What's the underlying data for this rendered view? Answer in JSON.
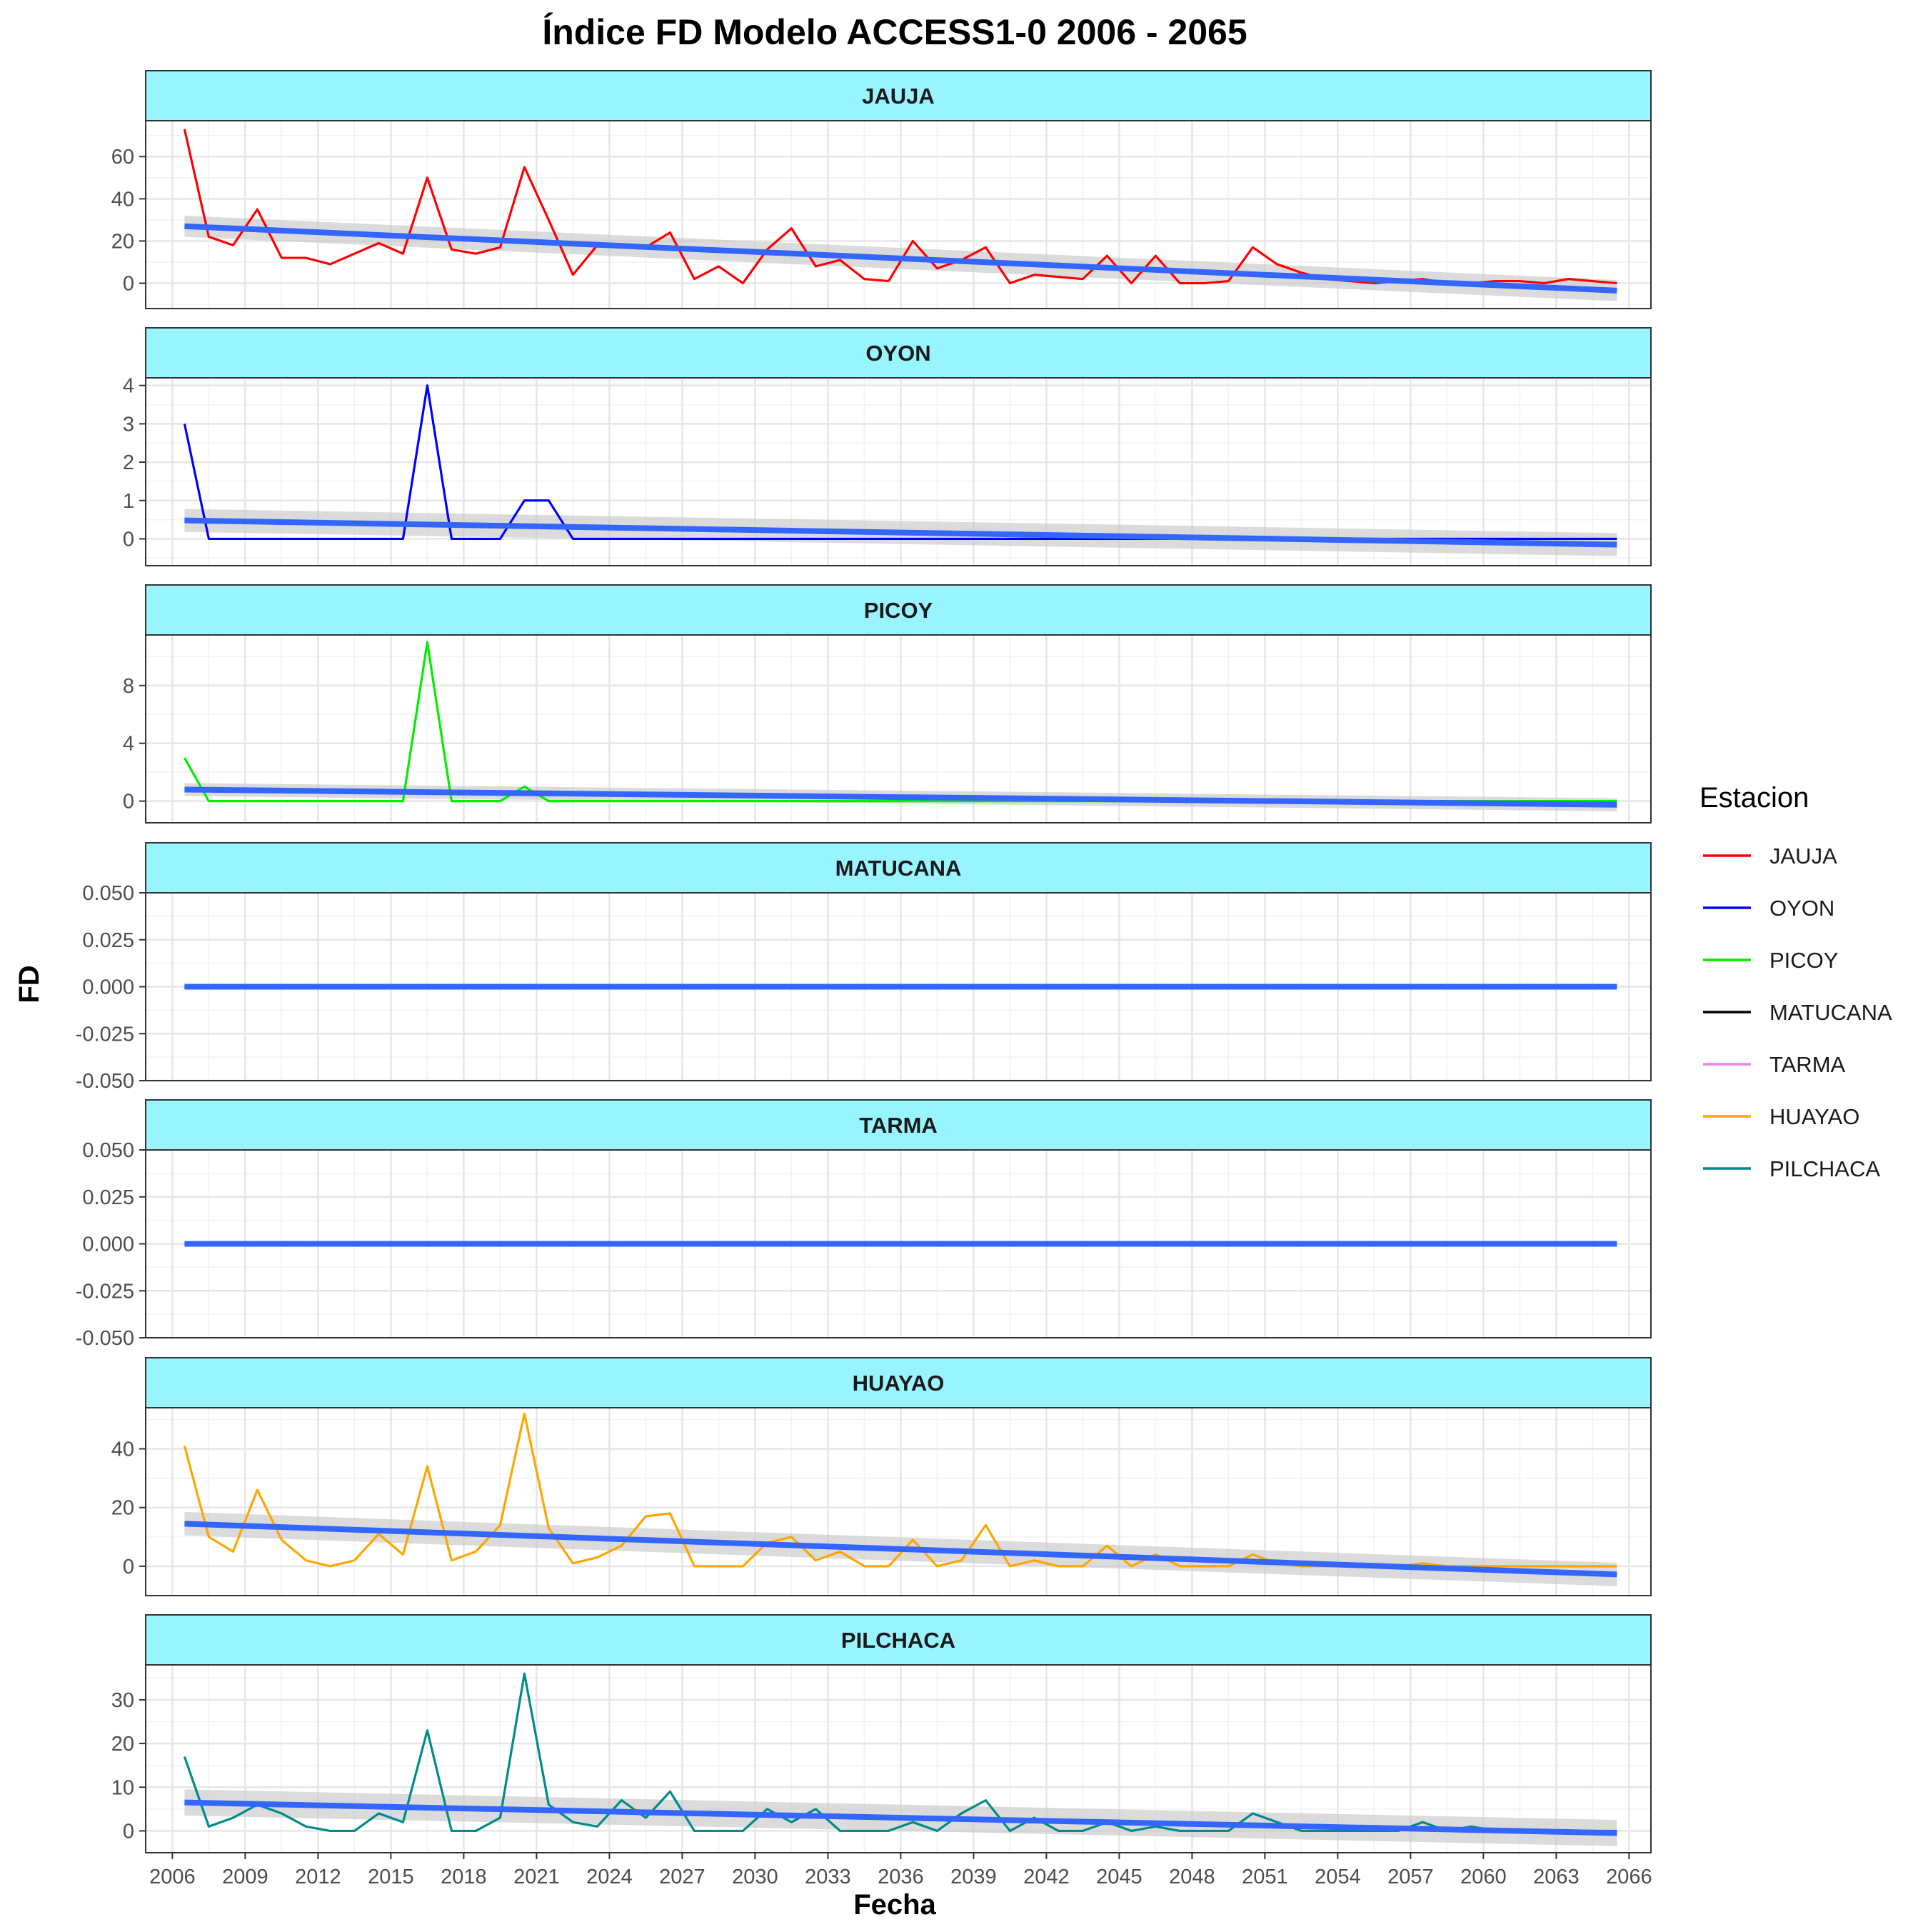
{
  "colors": {
    "strip_fill": "#98F5FF",
    "trend": "#3366FF",
    "band": "#C8C8C8",
    "grid_major": "#E6E6E6",
    "grid_minor": "#F2F2F2",
    "panel_border": "#333333"
  },
  "chart_data": {
    "type": "line",
    "title": "Índice FD Modelo ACCESS1-0 2006 - 2065",
    "xlabel": "Fecha",
    "ylabel": "FD",
    "x_ticks": [
      "2006",
      "2009",
      "2012",
      "2015",
      "2018",
      "2021",
      "2024",
      "2027",
      "2030",
      "2033",
      "2036",
      "2039",
      "2042",
      "2045",
      "2048",
      "2051",
      "2054",
      "2057",
      "2060",
      "2063",
      "2066"
    ],
    "xlim": [
      2004.9,
      2066.9
    ],
    "x_start_year": 2006.5,
    "x_end_year": 2065.5,
    "legend": {
      "title": "Estacion",
      "placement": "right"
    },
    "panels": [
      {
        "name": "JAUJA",
        "color": "#FF0000",
        "ylim": [
          -12,
          77
        ],
        "yticks": [
          0,
          20,
          40,
          60
        ],
        "ytick_labels": [
          "0",
          "20",
          "40",
          "60"
        ],
        "values": [
          73,
          22,
          18,
          35,
          12,
          12,
          9,
          14,
          19,
          14,
          50,
          16,
          14,
          17,
          55,
          30,
          4,
          18,
          17,
          17,
          24,
          2,
          8,
          0,
          16,
          26,
          8,
          11,
          2,
          1,
          20,
          7,
          11,
          17,
          0,
          4,
          3,
          2,
          13,
          0,
          13,
          0,
          0,
          1,
          17,
          9,
          5,
          2,
          1,
          0,
          1,
          2,
          0,
          0,
          1,
          1,
          0,
          2,
          1,
          0
        ],
        "trend": [
          27,
          -3.5
        ],
        "band_halfwidth": [
          5,
          5
        ]
      },
      {
        "name": "OYON",
        "color": "#0000FF",
        "ylim": [
          -0.7,
          4.2
        ],
        "yticks": [
          0,
          1,
          2,
          3,
          4
        ],
        "ytick_labels": [
          "0",
          "1",
          "2",
          "3",
          "4"
        ],
        "values": [
          3,
          0,
          0,
          0,
          0,
          0,
          0,
          0,
          0,
          0,
          4,
          0,
          0,
          0,
          1,
          1,
          0,
          0,
          0,
          0,
          0,
          0,
          0,
          0,
          0,
          0,
          0,
          0,
          0,
          0,
          0,
          0,
          0,
          0,
          0,
          0,
          0,
          0,
          0,
          0,
          0,
          0,
          0,
          0,
          0,
          0,
          0,
          0,
          0,
          0,
          0,
          0,
          0,
          0,
          0,
          0,
          0,
          0,
          0,
          0
        ],
        "trend": [
          0.48,
          -0.15
        ],
        "band_halfwidth": [
          0.3,
          0.3
        ]
      },
      {
        "name": "PICOY",
        "color": "#00EE00",
        "ylim": [
          -1.5,
          11.5
        ],
        "yticks": [
          0,
          4,
          8
        ],
        "ytick_labels": [
          "0",
          "4",
          "8"
        ],
        "values": [
          3,
          0,
          0,
          0,
          0,
          0,
          0,
          0,
          0,
          0,
          11,
          0,
          0,
          0,
          1,
          0,
          0,
          0,
          0,
          0,
          0,
          0,
          0,
          0,
          0,
          0,
          0,
          0,
          0,
          0,
          0,
          0,
          0,
          0,
          0,
          0,
          0,
          0,
          0,
          0,
          0,
          0,
          0,
          0,
          0,
          0,
          0,
          0,
          0,
          0,
          0,
          0,
          0,
          0,
          0,
          0,
          0,
          0,
          0,
          0
        ],
        "trend": [
          0.8,
          -0.25
        ],
        "band_halfwidth": [
          0.45,
          0.45
        ]
      },
      {
        "name": "MATUCANA",
        "color": "#000000",
        "ylim": [
          -0.05,
          0.05
        ],
        "yticks": [
          -0.05,
          -0.025,
          0,
          0.025,
          0.05
        ],
        "ytick_labels": [
          "-0.050",
          "-0.025",
          "0.000",
          "0.025",
          "0.050"
        ],
        "values": [
          0,
          0,
          0,
          0,
          0,
          0,
          0,
          0,
          0,
          0,
          0,
          0,
          0,
          0,
          0,
          0,
          0,
          0,
          0,
          0,
          0,
          0,
          0,
          0,
          0,
          0,
          0,
          0,
          0,
          0,
          0,
          0,
          0,
          0,
          0,
          0,
          0,
          0,
          0,
          0,
          0,
          0,
          0,
          0,
          0,
          0,
          0,
          0,
          0,
          0,
          0,
          0,
          0,
          0,
          0,
          0,
          0,
          0,
          0,
          0
        ],
        "trend": [
          0,
          0
        ],
        "band_halfwidth": [
          0,
          0
        ]
      },
      {
        "name": "TARMA",
        "color": "#EE82EE",
        "ylim": [
          -0.05,
          0.05
        ],
        "yticks": [
          -0.05,
          -0.025,
          0,
          0.025,
          0.05
        ],
        "ytick_labels": [
          "-0.050",
          "-0.025",
          "0.000",
          "0.025",
          "0.050"
        ],
        "values": [
          0,
          0,
          0,
          0,
          0,
          0,
          0,
          0,
          0,
          0,
          0,
          0,
          0,
          0,
          0,
          0,
          0,
          0,
          0,
          0,
          0,
          0,
          0,
          0,
          0,
          0,
          0,
          0,
          0,
          0,
          0,
          0,
          0,
          0,
          0,
          0,
          0,
          0,
          0,
          0,
          0,
          0,
          0,
          0,
          0,
          0,
          0,
          0,
          0,
          0,
          0,
          0,
          0,
          0,
          0,
          0,
          0,
          0,
          0,
          0
        ],
        "trend": [
          0,
          0
        ],
        "band_halfwidth": [
          0,
          0
        ]
      },
      {
        "name": "HUAYAO",
        "color": "#FFA500",
        "ylim": [
          -10,
          54
        ],
        "yticks": [
          0,
          20,
          40
        ],
        "ytick_labels": [
          "0",
          "20",
          "40"
        ],
        "values": [
          41,
          10,
          5,
          26,
          9,
          2,
          0,
          2,
          11,
          4,
          34,
          2,
          5,
          14,
          52,
          13,
          1,
          3,
          7,
          17,
          18,
          0,
          0,
          0,
          8,
          10,
          2,
          5,
          0,
          0,
          9,
          0,
          2,
          14,
          0,
          2,
          0,
          0,
          7,
          0,
          4,
          0,
          0,
          0,
          4,
          1,
          0,
          0,
          0,
          0,
          0,
          1,
          0,
          0,
          0,
          0,
          0,
          0,
          0,
          0
        ],
        "trend": [
          14.5,
          -2.8
        ],
        "band_halfwidth": [
          4,
          4
        ]
      },
      {
        "name": "PILCHACA",
        "color": "#008B8B",
        "ylim": [
          -5,
          38
        ],
        "yticks": [
          0,
          10,
          20,
          30
        ],
        "ytick_labels": [
          "0",
          "10",
          "20",
          "30"
        ],
        "values": [
          17,
          1,
          3,
          6,
          4,
          1,
          0,
          0,
          4,
          2,
          23,
          0,
          0,
          3,
          36,
          6,
          2,
          1,
          7,
          3,
          9,
          0,
          0,
          0,
          5,
          2,
          5,
          0,
          0,
          0,
          2,
          0,
          4,
          7,
          0,
          3,
          0,
          0,
          2,
          0,
          1,
          0,
          0,
          0,
          4,
          2,
          0,
          0,
          0,
          0,
          0,
          2,
          0,
          1,
          0,
          0,
          0,
          0,
          0,
          0
        ],
        "trend": [
          6.5,
          -0.5
        ],
        "band_halfwidth": [
          3,
          3
        ]
      }
    ]
  }
}
